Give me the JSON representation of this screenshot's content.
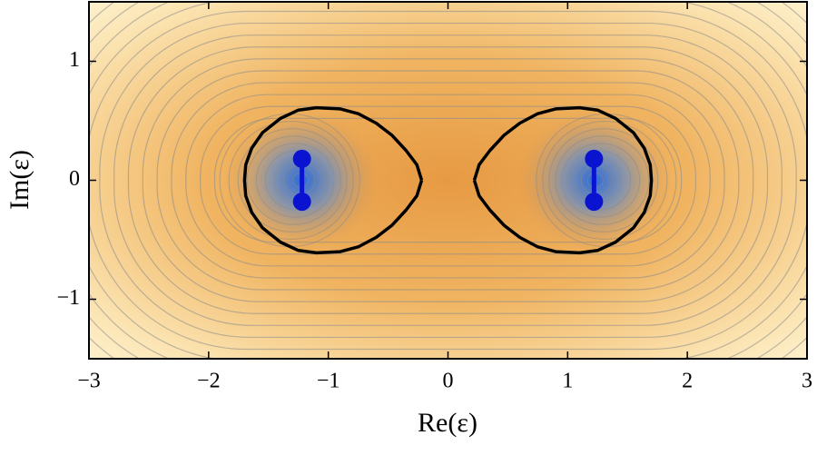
{
  "chart_data": {
    "type": "line",
    "xlabel": "Re(ε)",
    "ylabel": "Im(ε)",
    "xlim": [
      -3,
      3
    ],
    "ylim": [
      -1.5,
      1.5
    ],
    "xticks": [
      {
        "value": -3,
        "label": "−3"
      },
      {
        "value": -2,
        "label": "−2"
      },
      {
        "value": -1,
        "label": "−1"
      },
      0,
      1,
      2,
      3
    ],
    "yticks": [
      {
        "value": -1,
        "label": "−1"
      },
      0,
      1
    ],
    "series": [
      {
        "color": "#000000",
        "x": [
          0.22,
          0.26,
          0.35,
          0.47,
          0.6,
          0.75,
          0.9,
          1.1,
          1.25,
          1.4,
          1.55,
          1.64,
          1.69,
          1.7,
          1.69,
          1.64,
          1.55,
          1.4,
          1.25,
          1.1,
          0.9,
          0.75,
          0.6,
          0.47,
          0.35,
          0.26,
          0.22
        ],
        "values": [
          0,
          0.13,
          0.25,
          0.38,
          0.48,
          0.56,
          0.6,
          0.61,
          0.59,
          0.52,
          0.4,
          0.27,
          0.13,
          0,
          -0.13,
          -0.27,
          -0.4,
          -0.52,
          -0.59,
          -0.61,
          -0.6,
          -0.56,
          -0.48,
          -0.38,
          -0.25,
          -0.13,
          0
        ]
      },
      {
        "color": "#000000",
        "x": [
          -0.22,
          -0.26,
          -0.35,
          -0.47,
          -0.6,
          -0.75,
          -0.9,
          -1.1,
          -1.25,
          -1.4,
          -1.55,
          -1.64,
          -1.69,
          -1.7,
          -1.69,
          -1.64,
          -1.55,
          -1.4,
          -1.25,
          -1.1,
          -0.9,
          -0.75,
          -0.6,
          -0.47,
          -0.35,
          -0.26,
          -0.22
        ],
        "values": [
          0,
          0.13,
          0.25,
          0.38,
          0.48,
          0.56,
          0.6,
          0.61,
          0.59,
          0.52,
          0.4,
          0.27,
          0.13,
          0,
          -0.13,
          -0.27,
          -0.4,
          -0.52,
          -0.59,
          -0.61,
          -0.6,
          -0.56,
          -0.48,
          -0.38,
          -0.25,
          -0.13,
          0
        ]
      },
      {
        "color": "#0a14d0",
        "markers": true,
        "x": [
          -1.22,
          -1.22
        ],
        "values": [
          0.18,
          -0.18
        ]
      },
      {
        "color": "#0a14d0",
        "markers": true,
        "x": [
          1.22,
          1.22
        ],
        "values": [
          0.18,
          -0.18
        ]
      }
    ]
  }
}
